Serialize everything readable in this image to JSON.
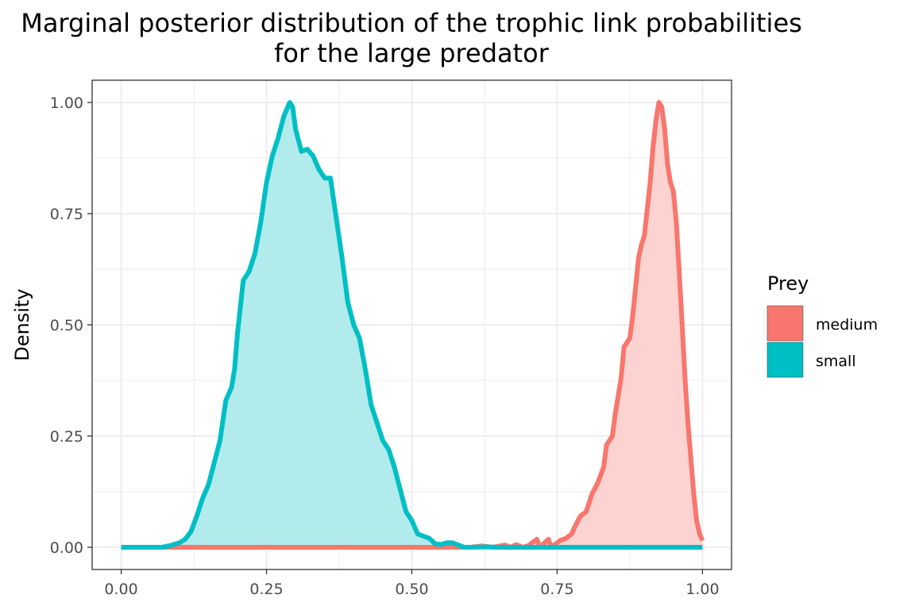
{
  "chart_data": {
    "type": "area",
    "title": "Marginal posterior distribution of the trophic link probabilities",
    "subtitle": "for the large predator",
    "xlabel": "",
    "ylabel": "Density",
    "xlim": [
      0,
      1
    ],
    "ylim": [
      0,
      1
    ],
    "x_ticks": [
      "0.00",
      "0.25",
      "0.50",
      "0.75",
      "1.00"
    ],
    "y_ticks": [
      "0.00",
      "0.25",
      "0.50",
      "0.75",
      "1.00"
    ],
    "grid": true,
    "legend": {
      "title": "Prey",
      "position": "right"
    },
    "series": [
      {
        "name": "medium",
        "color": "#F8766D",
        "fill": "#FCD3D0",
        "points": [
          [
            0.0,
            0.0
          ],
          [
            0.6,
            0.0
          ],
          [
            0.62,
            0.003
          ],
          [
            0.64,
            0.0
          ],
          [
            0.66,
            0.005
          ],
          [
            0.67,
            0.0
          ],
          [
            0.68,
            0.006
          ],
          [
            0.69,
            0.0
          ],
          [
            0.7,
            0.003
          ],
          [
            0.715,
            0.018
          ],
          [
            0.72,
            0.0
          ],
          [
            0.735,
            0.018
          ],
          [
            0.74,
            0.0
          ],
          [
            0.755,
            0.015
          ],
          [
            0.765,
            0.02
          ],
          [
            0.775,
            0.03
          ],
          [
            0.78,
            0.045
          ],
          [
            0.79,
            0.07
          ],
          [
            0.8,
            0.08
          ],
          [
            0.81,
            0.12
          ],
          [
            0.82,
            0.145
          ],
          [
            0.83,
            0.18
          ],
          [
            0.835,
            0.23
          ],
          [
            0.845,
            0.25
          ],
          [
            0.85,
            0.3
          ],
          [
            0.86,
            0.38
          ],
          [
            0.865,
            0.45
          ],
          [
            0.875,
            0.47
          ],
          [
            0.88,
            0.52
          ],
          [
            0.89,
            0.65
          ],
          [
            0.895,
            0.68
          ],
          [
            0.9,
            0.7
          ],
          [
            0.905,
            0.76
          ],
          [
            0.91,
            0.82
          ],
          [
            0.915,
            0.9
          ],
          [
            0.92,
            0.96
          ],
          [
            0.925,
            1.0
          ],
          [
            0.93,
            0.99
          ],
          [
            0.935,
            0.94
          ],
          [
            0.94,
            0.86
          ],
          [
            0.945,
            0.82
          ],
          [
            0.95,
            0.8
          ],
          [
            0.955,
            0.73
          ],
          [
            0.96,
            0.62
          ],
          [
            0.965,
            0.5
          ],
          [
            0.97,
            0.38
          ],
          [
            0.975,
            0.28
          ],
          [
            0.98,
            0.2
          ],
          [
            0.985,
            0.12
          ],
          [
            0.99,
            0.06
          ],
          [
            0.995,
            0.03
          ],
          [
            1.0,
            0.015
          ]
        ]
      },
      {
        "name": "small",
        "color": "#00BFC4",
        "fill": "#B2EBEC",
        "points": [
          [
            0.0,
            0.0
          ],
          [
            0.07,
            0.0
          ],
          [
            0.085,
            0.004
          ],
          [
            0.1,
            0.01
          ],
          [
            0.11,
            0.018
          ],
          [
            0.12,
            0.035
          ],
          [
            0.13,
            0.07
          ],
          [
            0.14,
            0.11
          ],
          [
            0.15,
            0.14
          ],
          [
            0.16,
            0.19
          ],
          [
            0.17,
            0.24
          ],
          [
            0.18,
            0.33
          ],
          [
            0.19,
            0.36
          ],
          [
            0.195,
            0.4
          ],
          [
            0.2,
            0.48
          ],
          [
            0.21,
            0.6
          ],
          [
            0.22,
            0.62
          ],
          [
            0.23,
            0.66
          ],
          [
            0.24,
            0.73
          ],
          [
            0.25,
            0.82
          ],
          [
            0.26,
            0.88
          ],
          [
            0.27,
            0.92
          ],
          [
            0.28,
            0.97
          ],
          [
            0.29,
            1.0
          ],
          [
            0.295,
            0.99
          ],
          [
            0.3,
            0.94
          ],
          [
            0.31,
            0.89
          ],
          [
            0.32,
            0.895
          ],
          [
            0.33,
            0.88
          ],
          [
            0.34,
            0.85
          ],
          [
            0.35,
            0.83
          ],
          [
            0.36,
            0.83
          ],
          [
            0.37,
            0.74
          ],
          [
            0.38,
            0.65
          ],
          [
            0.39,
            0.55
          ],
          [
            0.4,
            0.5
          ],
          [
            0.41,
            0.47
          ],
          [
            0.42,
            0.4
          ],
          [
            0.43,
            0.32
          ],
          [
            0.44,
            0.28
          ],
          [
            0.45,
            0.24
          ],
          [
            0.46,
            0.22
          ],
          [
            0.47,
            0.18
          ],
          [
            0.48,
            0.13
          ],
          [
            0.49,
            0.08
          ],
          [
            0.5,
            0.06
          ],
          [
            0.51,
            0.03
          ],
          [
            0.52,
            0.025
          ],
          [
            0.53,
            0.02
          ],
          [
            0.54,
            0.008
          ],
          [
            0.55,
            0.006
          ],
          [
            0.56,
            0.01
          ],
          [
            0.57,
            0.01
          ],
          [
            0.58,
            0.005
          ],
          [
            0.59,
            0.0
          ],
          [
            0.6,
            0.0
          ],
          [
            0.63,
            0.001
          ],
          [
            0.65,
            0.0
          ],
          [
            1.0,
            0.0
          ]
        ]
      }
    ]
  }
}
